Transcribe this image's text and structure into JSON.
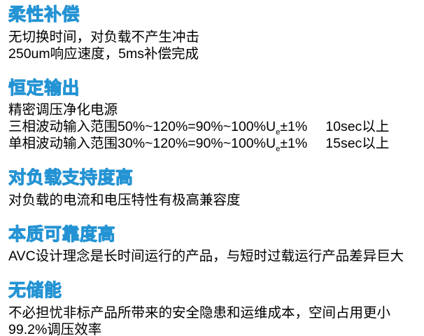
{
  "styles": {
    "heading_color": "#41b6e8",
    "heading_stroke": "#2493d3",
    "body_color": "#000000",
    "page_background": "#ffffff"
  },
  "sections": [
    {
      "heading": "柔性补偿",
      "lines": [
        "无切换时间，对负载不产生冲击",
        "250um响应速度，5ms补偿完成"
      ]
    },
    {
      "heading": "恒定输出",
      "lines": [
        "精密调压净化电源"
      ],
      "spec_lines": [
        {
          "prefix": "三相波动输入范围50%~120%=90%~100%U",
          "subscript": "e",
          "tolerance": "±1%",
          "duration": "10sec以上"
        },
        {
          "prefix": "单相波动输入范围30%~120%=90%~100%U",
          "subscript": "e",
          "tolerance": "±1%",
          "duration": "15sec以上"
        }
      ]
    },
    {
      "heading": "对负载支持度高",
      "lines": [
        "对负载的电流和电压特性有极高兼容度"
      ]
    },
    {
      "heading": "本质可靠度高",
      "lines": [
        "AVC设计理念是长时间运行的产品，与短时过载运行产品差异巨大"
      ]
    },
    {
      "heading": "无储能",
      "lines": [
        "不必担忧非标产品所带来的安全隐患和运维成本，空间占用更小",
        "99.2%调压效率"
      ]
    }
  ]
}
